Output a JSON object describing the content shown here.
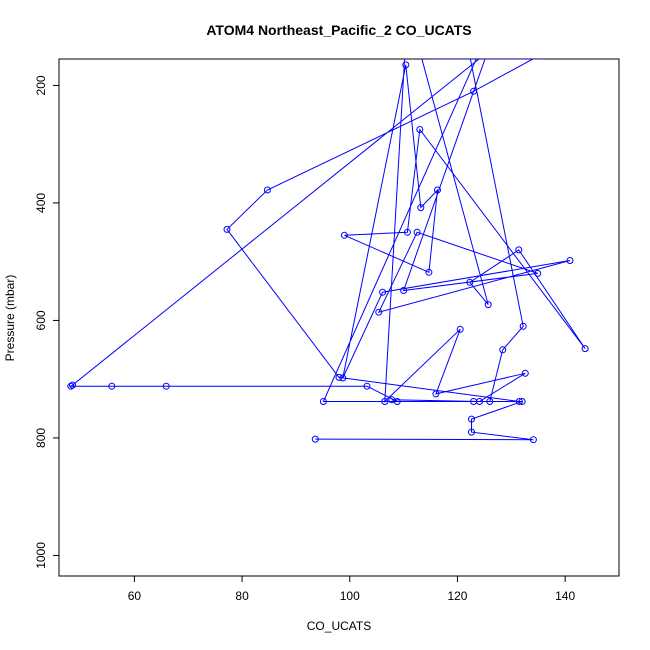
{
  "chart_data": {
    "type": "line",
    "title": "ATOM4 Northeast_Pacific_2 CO_UCATS",
    "xlabel": "CO_UCATS",
    "ylabel": "Pressure (mbar)",
    "xlim": [
      46,
      150
    ],
    "ylim": [
      1035,
      155
    ],
    "y_reversed": true,
    "x_ticks": [
      60,
      80,
      100,
      120,
      140
    ],
    "y_ticks": [
      200,
      400,
      600,
      800,
      1000
    ],
    "x_tick_labels": [
      "60",
      "80",
      "100",
      "120",
      "140"
    ],
    "y_tick_labels": [
      "200",
      "400",
      "600",
      "800",
      "1000"
    ],
    "grid": false,
    "legend": "none",
    "series_color": "#0000ff",
    "series": [
      {
        "x": [
          93.6,
          134.1,
          122.6,
          122.6,
          132.0,
          123.0,
          131.5,
          98.0,
          77.2,
          84.7,
          123.0,
          134.0,
          128.6,
          114.7,
          114.2,
          121.0,
          123.5,
          95.1,
          126.0,
          128.4,
          132.2,
          122.4,
          128.3,
          136.0,
          128.1,
          124.0,
          48.5,
          48.2,
          55.8,
          65.9,
          103.2,
          108.8,
          107.8,
          124.1,
          132.6,
          116.0,
          120.5,
          106.5,
          110.2,
          113.4,
          125.7,
          122.3,
          131.4,
          143.7,
          113.0,
          110.7,
          99.0,
          114.7,
          116.3,
          113.2,
          110.4,
          98.7,
          106.1,
          140.9,
          105.4,
          112.5,
          134.9,
          110.0,
          125.3
        ],
        "y": [
          802,
          803,
          790,
          768,
          738,
          738,
          738,
          697,
          445,
          378,
          210,
          155,
          155,
          155,
          155,
          155,
          155,
          738,
          738,
          650,
          610,
          155,
          155,
          155,
          155,
          155,
          710,
          712,
          712,
          712,
          712,
          738,
          735,
          738,
          690,
          725,
          615,
          738,
          150,
          155,
          573,
          535,
          480,
          648,
          275,
          450,
          455,
          518,
          378,
          408,
          165,
          698,
          552,
          498,
          586,
          450,
          520,
          549,
          150
        ]
      }
    ]
  }
}
